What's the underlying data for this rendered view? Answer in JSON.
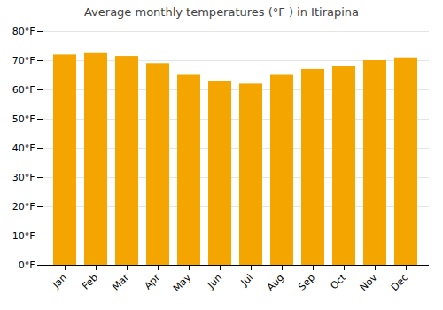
{
  "chart_data": {
    "type": "bar",
    "title": "Average monthly temperatures (°F ) in Itirapina",
    "categories": [
      "Jan",
      "Feb",
      "Mar",
      "Apr",
      "May",
      "Jun",
      "Jul",
      "Aug",
      "Sep",
      "Oct",
      "Nov",
      "Dec"
    ],
    "values": [
      72,
      72.5,
      71.5,
      69,
      65,
      63,
      62,
      65,
      67,
      68,
      70,
      71
    ],
    "color": "#F5A500",
    "ylim": [
      0,
      80
    ],
    "yticks": [
      {
        "value": 0,
        "label": "0°F"
      },
      {
        "value": 10,
        "label": "10°F"
      },
      {
        "value": 20,
        "label": "20°F"
      },
      {
        "value": 30,
        "label": "30°F"
      },
      {
        "value": 40,
        "label": "40°F"
      },
      {
        "value": 50,
        "label": "50°F"
      },
      {
        "value": 60,
        "label": "60°F"
      },
      {
        "value": 70,
        "label": "70°F"
      },
      {
        "value": 80,
        "label": "80°F"
      }
    ],
    "grid": true
  }
}
